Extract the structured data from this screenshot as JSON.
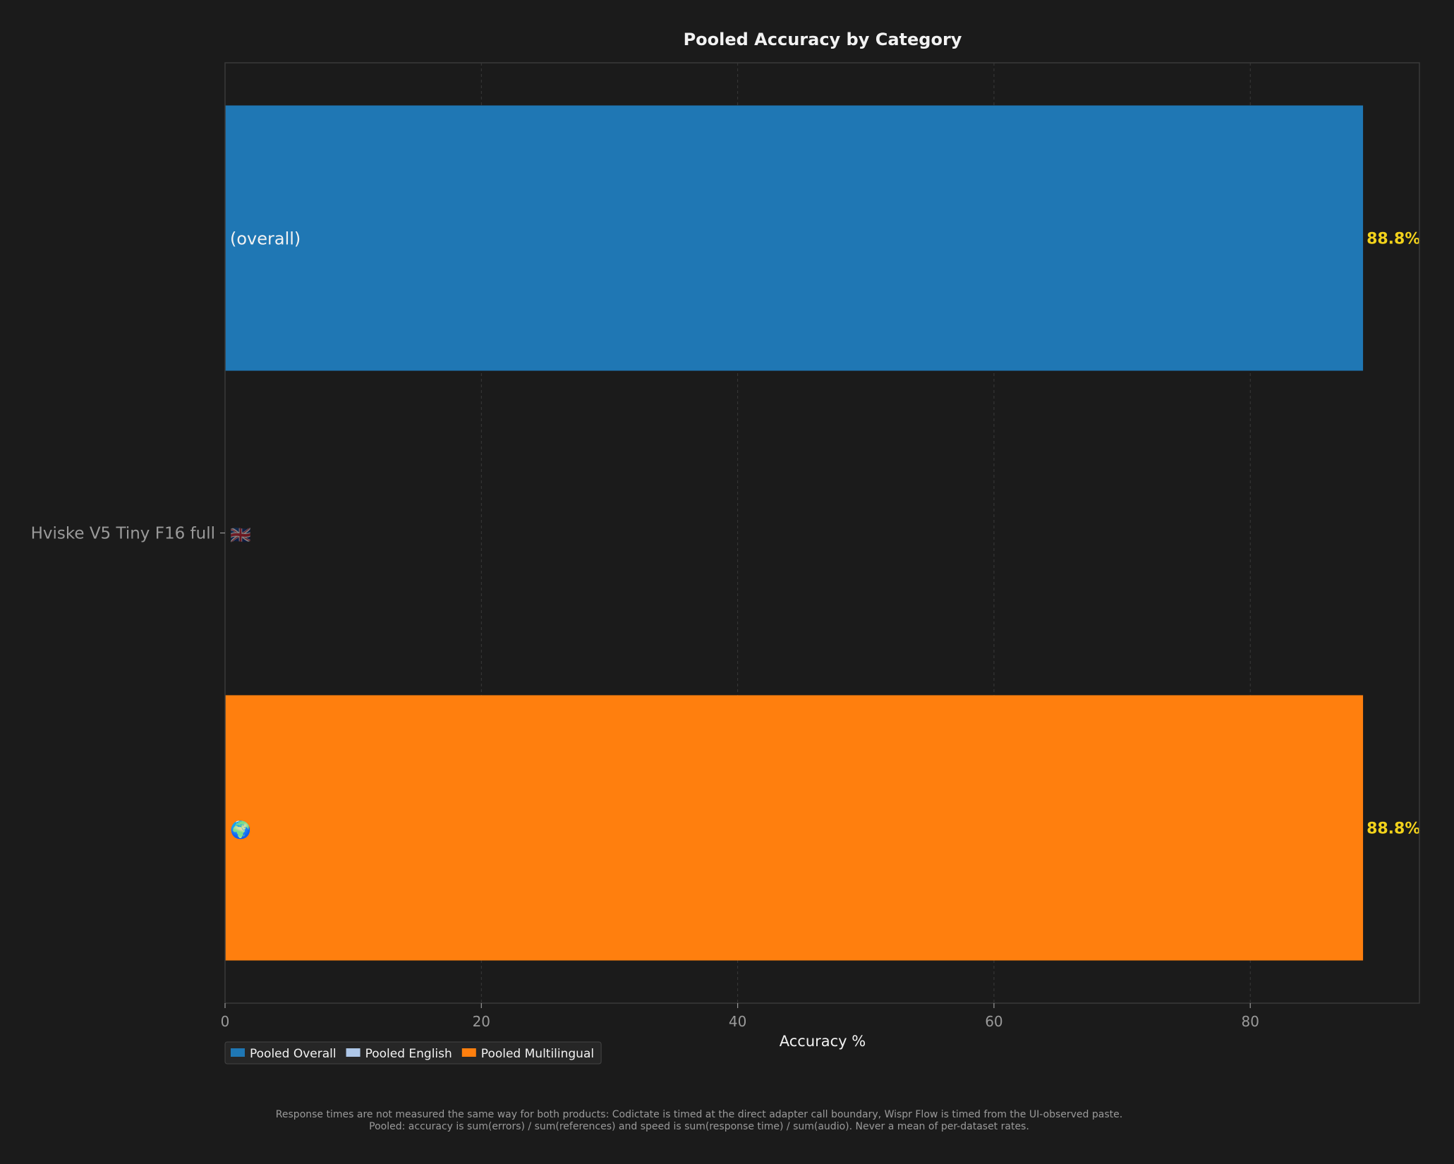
{
  "chart_data": {
    "type": "bar",
    "orientation": "horizontal",
    "title": "Pooled Accuracy by Category",
    "xlabel": "Accuracy %",
    "ylabel": "",
    "xlim": [
      0,
      93.2
    ],
    "xticks": [
      0,
      20,
      40,
      60,
      80
    ],
    "grid": true,
    "categories": [
      "Hviske V5 Tiny F16 full"
    ],
    "series": [
      {
        "name": "Pooled Overall",
        "values": [
          88.8
        ],
        "color": "#1f77b4",
        "value_label": "88.8%",
        "bar_label": "(overall)"
      },
      {
        "name": "Pooled English",
        "values": [
          0
        ],
        "color": "#aec7e8",
        "value_label": "",
        "bar_label": "🇬🇧"
      },
      {
        "name": "Pooled Multilingual",
        "values": [
          88.8
        ],
        "color": "#ff7f0e",
        "value_label": "88.8%",
        "bar_label": "🌍"
      }
    ],
    "legend_position": "bottom-left",
    "footnotes": [
      "Response times are not measured the same way for both products: Codictate is timed at the direct adapter call boundary, Wispr Flow is timed from the UI-observed paste.",
      "Pooled: accuracy is sum(errors) / sum(references) and speed is sum(response time) / sum(audio). Never a mean of per-dataset rates."
    ]
  },
  "colors": {
    "background": "#1b1b1b",
    "value_label": "#f2d21b",
    "grid": "#3a3a3a"
  }
}
